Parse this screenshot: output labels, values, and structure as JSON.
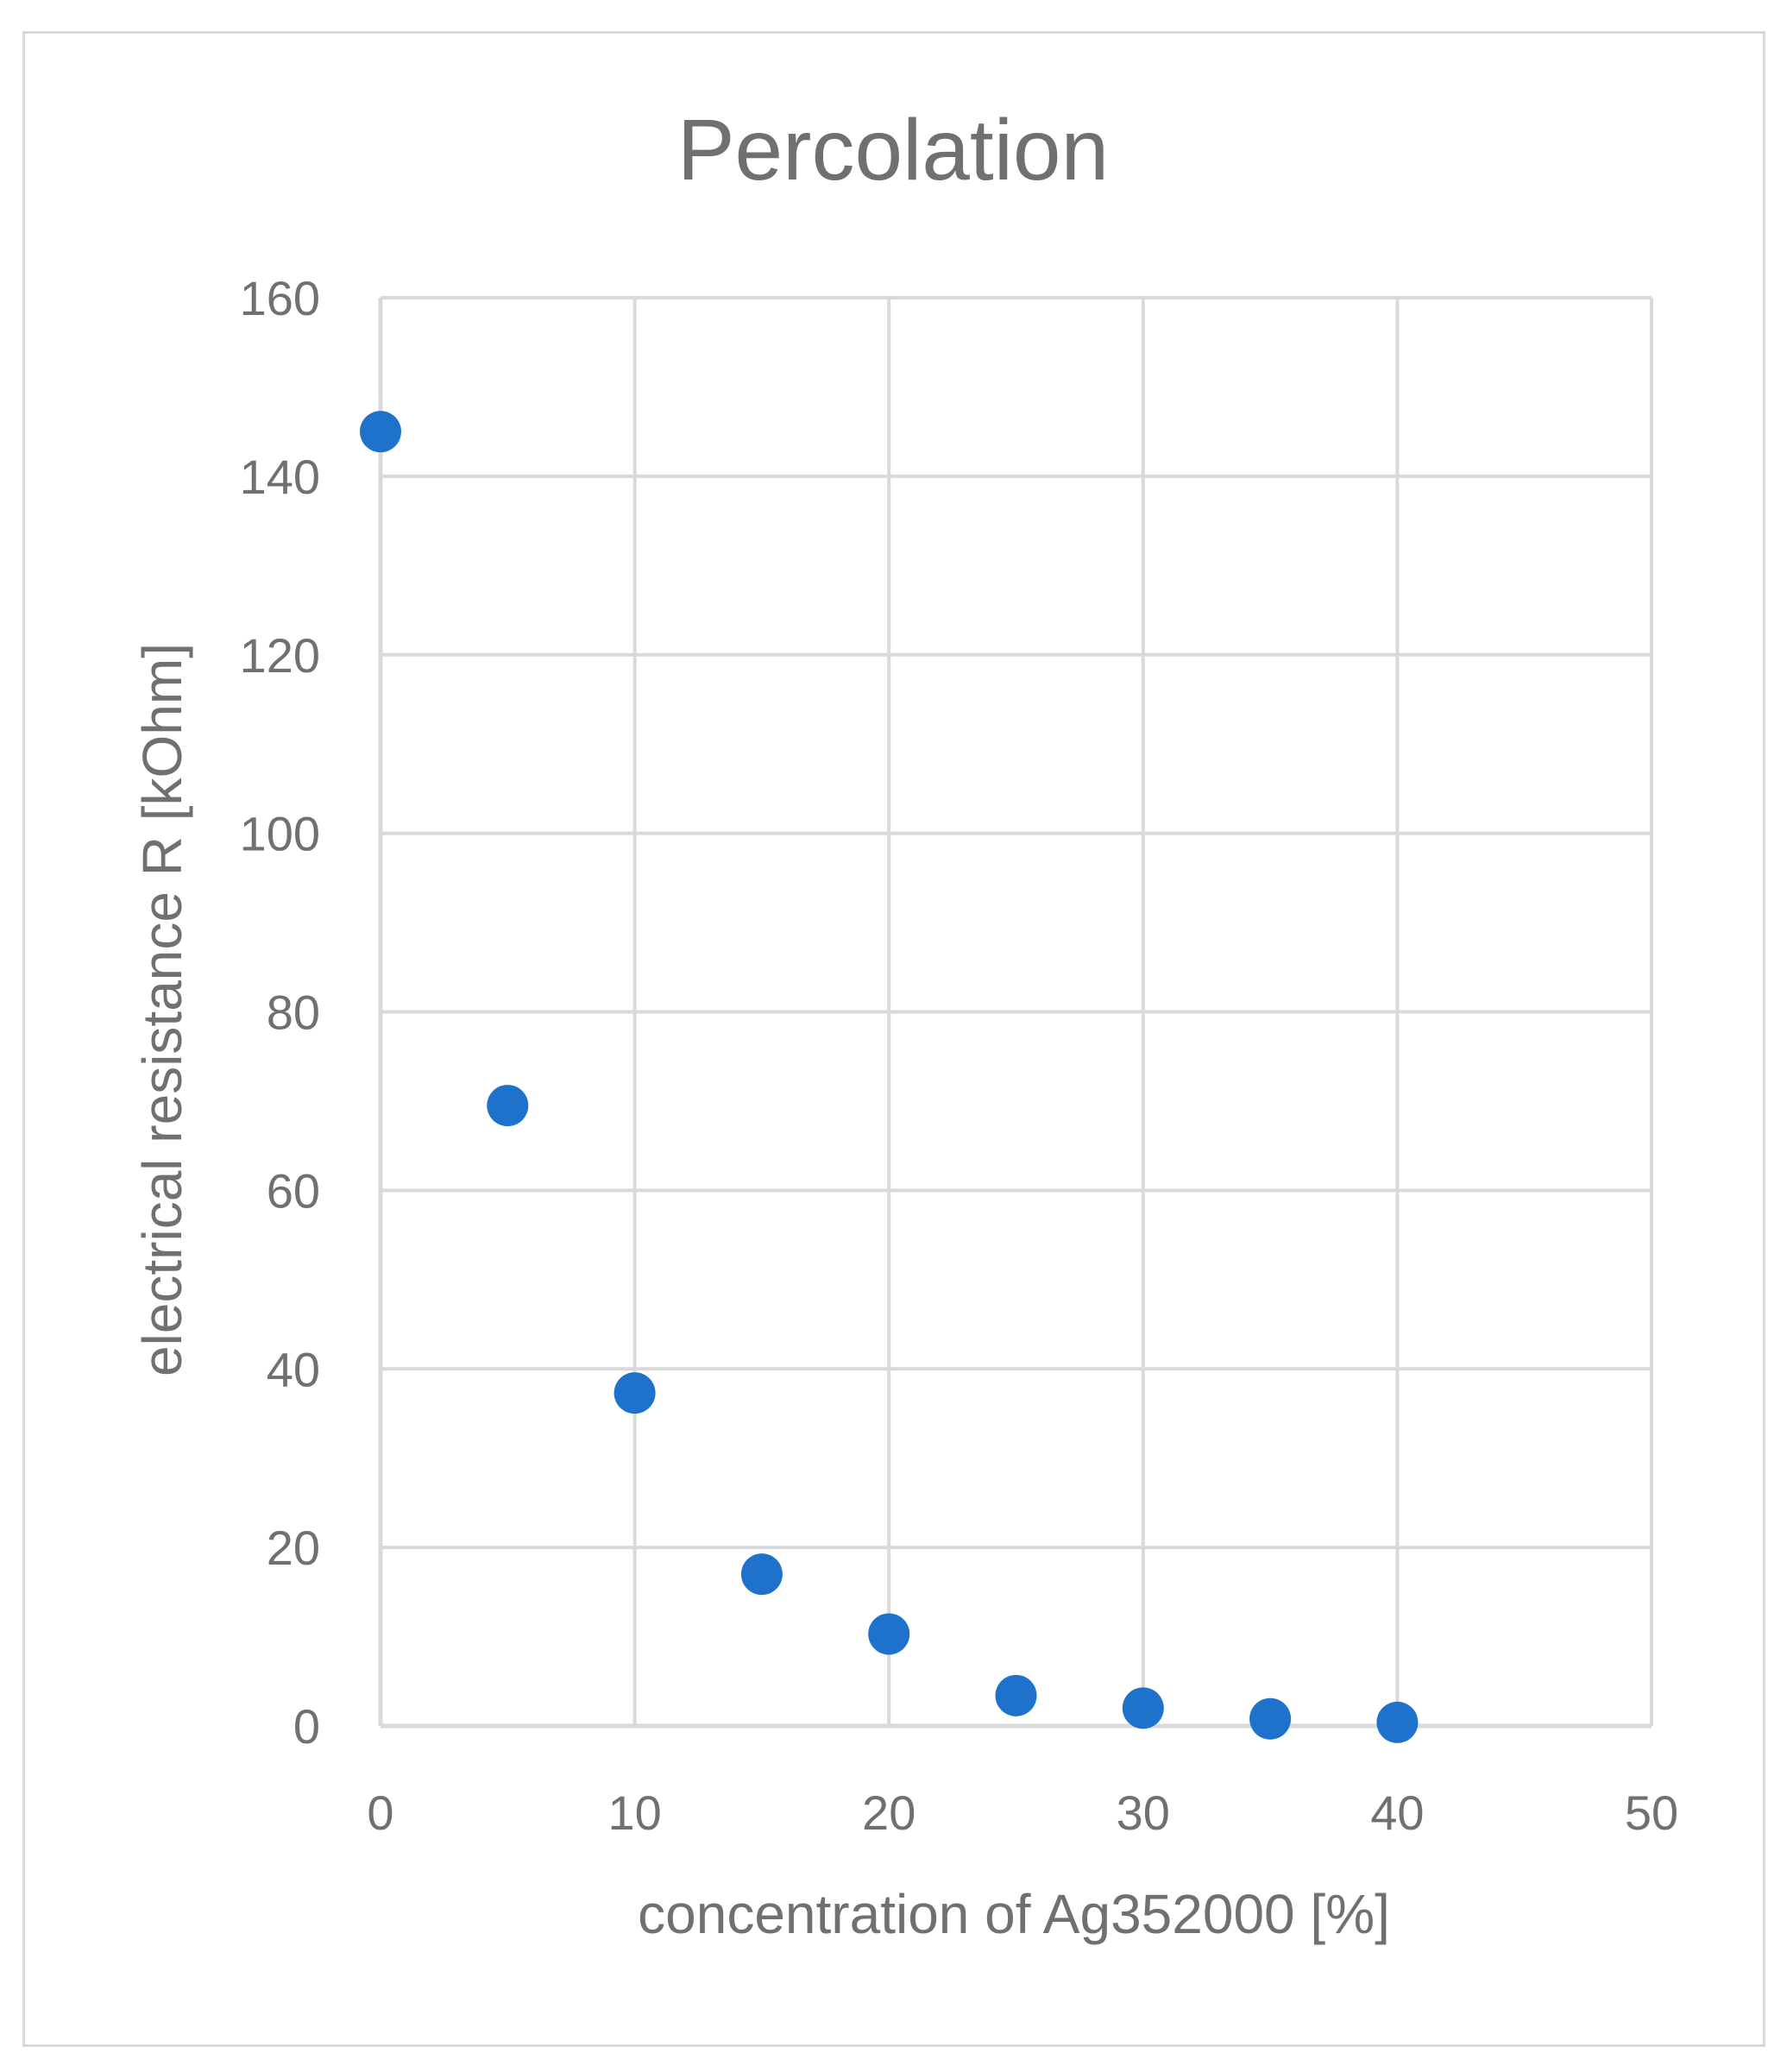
{
  "chart_data": {
    "type": "scatter",
    "title": "Percolation",
    "xlabel": "concentration of Ag352000 [%]",
    "ylabel": "electrical resistance R [kOhm]",
    "xlim": [
      0,
      50
    ],
    "ylim": [
      0,
      160
    ],
    "xticks": [
      "0",
      "10",
      "20",
      "30",
      "40",
      "50"
    ],
    "yticks": [
      "0",
      "20",
      "40",
      "60",
      "80",
      "100",
      "120",
      "140",
      "160"
    ],
    "grid": true,
    "legend": "none",
    "series": [
      {
        "x": [
          0,
          5,
          10,
          15,
          20,
          25,
          30,
          35,
          40
        ],
        "y": [
          145,
          69.5,
          37.3,
          17,
          10.3,
          3.4,
          2,
          0.8,
          0.4
        ],
        "color": "#1f72cc"
      }
    ],
    "colors": {
      "grid": "#d9d9d9",
      "text": "#707070",
      "marker": "#1f72cc",
      "border": "#d9d9d9"
    }
  }
}
